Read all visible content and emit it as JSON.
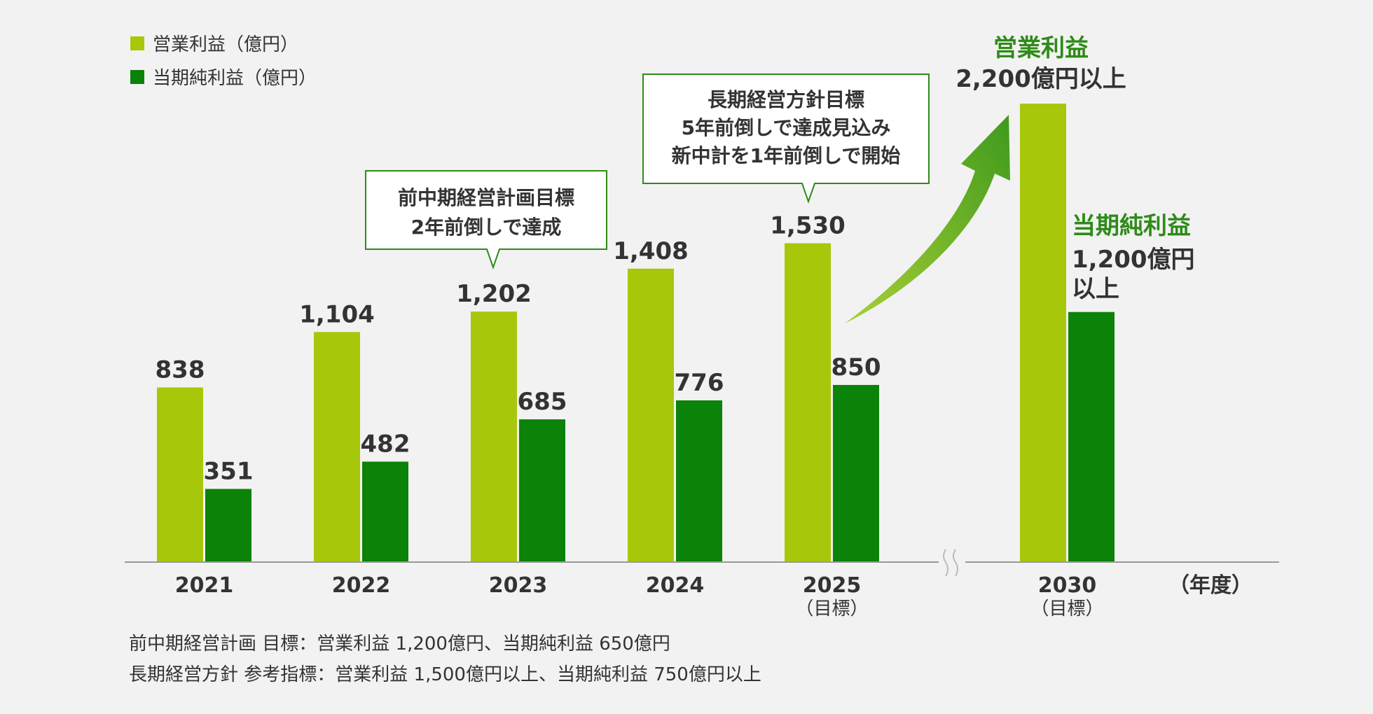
{
  "legend": [
    {
      "label": "営業利益（億円）"
    },
    {
      "label": "当期純利益（億円）"
    }
  ],
  "unit_label": "（年度）",
  "callouts": [
    {
      "lines": [
        "前中期経営計画目標",
        "2年前倒しで達成"
      ]
    },
    {
      "lines": [
        "長期経営方針目標",
        "5年前倒しで達成見込み",
        "新中計を1年前倒しで開始"
      ]
    }
  ],
  "target_annotations": {
    "op_title": "営業利益",
    "op_value": "2,200億円以上",
    "net_title": "当期純利益",
    "net_value_line1": "1,200億円",
    "net_value_line2": "以上"
  },
  "notes": [
    "前中期経営計画 目標：営業利益 1,200億円、当期純利益 650億円",
    "長期経営方針 参考指標：営業利益 1,500億円以上、当期純利益 750億円以上"
  ],
  "colors": {
    "operating_profit": "#a7c80a",
    "net_profit": "#0b8208",
    "accent": "#2e8b18",
    "axis": "#999999"
  },
  "chart_data": {
    "type": "bar",
    "categories": [
      "2021",
      "2022",
      "2023",
      "2024",
      "2025",
      "2030"
    ],
    "category_sublabels": [
      "",
      "",
      "",
      "",
      "（目標）",
      "（目標）"
    ],
    "series": [
      {
        "name": "営業利益（億円）",
        "values": [
          838,
          1104,
          1202,
          1408,
          1530,
          2200
        ],
        "labels": [
          "838",
          "1,104",
          "1,202",
          "1,408",
          "1,530",
          ""
        ]
      },
      {
        "name": "当期純利益（億円）",
        "values": [
          351,
          482,
          685,
          776,
          850,
          1200
        ],
        "labels": [
          "351",
          "482",
          "685",
          "776",
          "850",
          ""
        ]
      }
    ],
    "xlabel": "（年度）",
    "ylabel": "",
    "ylim": [
      0,
      2200
    ],
    "grid": false,
    "legend_position": "top-left",
    "axis_break_between": [
      "2025",
      "2030"
    ]
  }
}
